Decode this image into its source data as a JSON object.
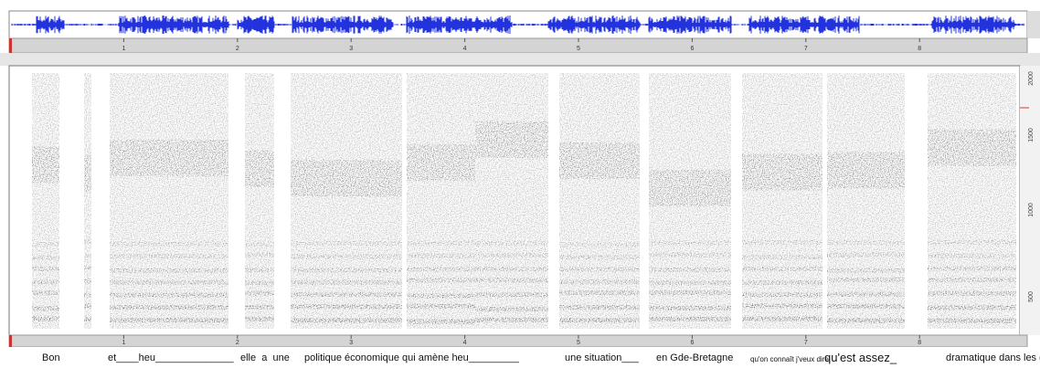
{
  "waveform_ruler": {
    "ticks": [
      "1",
      "2",
      "3",
      "4",
      "5",
      "6",
      "7",
      "8"
    ]
  },
  "spectrogram_ruler": {
    "ticks": [
      "1",
      "2",
      "3",
      "4",
      "5",
      "6",
      "7",
      "8"
    ]
  },
  "frequency_labels": [
    "500",
    "1000",
    "1500",
    "2000"
  ],
  "transcript": [
    "Bon",
    "et____heu______________",
    "elle  a  une",
    "politique économique qui amène heu_________",
    "une situation___",
    "en Gde-Bretagne",
    "qu'on connaît j'veux dire",
    "qu'est assez_",
    "dramatique dans les ghe-"
  ]
}
